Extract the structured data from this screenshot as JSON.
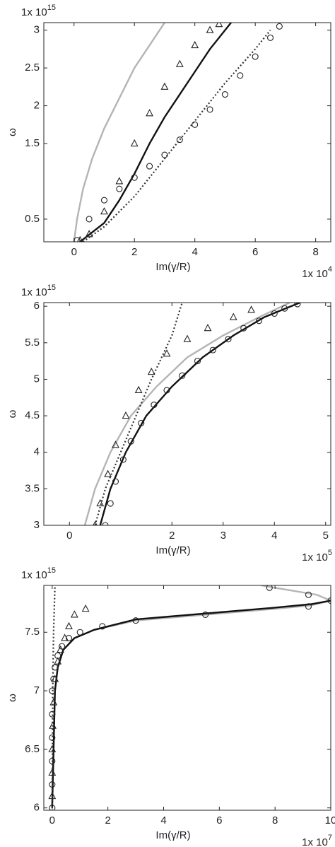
{
  "chart_data": [
    {
      "type": "line",
      "x_label": "Im(γ/R)",
      "y_label": "ω",
      "x_offset": {
        "base": "1x 10",
        "exponent": "4"
      },
      "y_offset": {
        "base": "1x 10",
        "exponent": "15"
      },
      "xlim": [
        -1,
        8.5
      ],
      "ylim": [
        0.2,
        3.1
      ],
      "xticks": [
        0,
        2,
        4,
        6,
        8
      ],
      "yticks": [
        0.5,
        1.5,
        2,
        2.5,
        3
      ],
      "series": [
        {
          "color": "#b4b4b4",
          "line": "solid",
          "marker": "none",
          "x": [
            0,
            0.1,
            0.3,
            0.6,
            1,
            1.5,
            2,
            2.5,
            3
          ],
          "values": [
            0.2,
            0.5,
            0.9,
            1.3,
            1.7,
            2.1,
            2.5,
            2.8,
            3.1
          ]
        },
        {
          "color": "#111111",
          "line": "solid",
          "marker": "none",
          "x": [
            0.2,
            1,
            1.5,
            2,
            2.5,
            3,
            3.5,
            4,
            4.5,
            5.2
          ],
          "values": [
            0.2,
            0.45,
            0.75,
            1.1,
            1.5,
            1.85,
            2.15,
            2.45,
            2.75,
            3.1
          ]
        },
        {
          "color": "#333333",
          "line": "dotted",
          "marker": "none",
          "x": [
            0.3,
            1,
            2,
            3,
            4,
            5,
            6,
            6.5
          ],
          "values": [
            0.2,
            0.4,
            0.8,
            1.3,
            1.8,
            2.3,
            2.75,
            3.0
          ]
        },
        {
          "color": "#222222",
          "line": "none",
          "marker": "triangle",
          "x": [
            0.2,
            0.5,
            1,
            1.5,
            2,
            2.5,
            3,
            3.5,
            4,
            4.5,
            4.8
          ],
          "values": [
            0.22,
            0.3,
            0.6,
            1.0,
            1.5,
            1.9,
            2.25,
            2.55,
            2.8,
            3.0,
            3.08
          ]
        },
        {
          "color": "#222222",
          "line": "none",
          "marker": "circle",
          "x": [
            0.1,
            0.5,
            1,
            1.5,
            2,
            2.5,
            3,
            3.5,
            4,
            4.5,
            5,
            5.5,
            6,
            6.5,
            6.8
          ],
          "values": [
            0.22,
            0.5,
            0.75,
            0.9,
            1.05,
            1.2,
            1.35,
            1.55,
            1.75,
            1.95,
            2.15,
            2.4,
            2.65,
            2.9,
            3.05
          ]
        }
      ]
    },
    {
      "type": "line",
      "x_label": "Im(γ/R)",
      "y_label": "ω",
      "x_offset": {
        "base": "1x 10",
        "exponent": "5"
      },
      "y_offset": {
        "base": "1x 10",
        "exponent": "15"
      },
      "xlim": [
        -0.5,
        5.1
      ],
      "ylim": [
        3,
        6.05
      ],
      "xticks": [
        0,
        2,
        3,
        4,
        5
      ],
      "yticks": [
        3,
        3.5,
        4,
        4.5,
        5,
        5.5,
        6
      ],
      "series": [
        {
          "color": "#b4b4b4",
          "line": "solid",
          "marker": "none",
          "x": [
            0.3,
            0.5,
            0.8,
            1.2,
            1.7,
            2.3,
            3,
            3.7,
            4.3
          ],
          "values": [
            3,
            3.5,
            4,
            4.5,
            4.9,
            5.3,
            5.6,
            5.85,
            6.05
          ]
        },
        {
          "color": "#111111",
          "line": "solid",
          "marker": "none",
          "x": [
            0.6,
            0.8,
            1.1,
            1.5,
            2,
            2.6,
            3.2,
            3.8,
            4.5
          ],
          "values": [
            3,
            3.5,
            4,
            4.5,
            4.9,
            5.3,
            5.6,
            5.85,
            6.05
          ]
        },
        {
          "color": "#333333",
          "line": "dotted",
          "marker": "none",
          "x": [
            0.5,
            0.7,
            1,
            1.3,
            1.6,
            2,
            2.2
          ],
          "values": [
            3,
            3.5,
            4,
            4.5,
            5,
            5.6,
            6.05
          ]
        },
        {
          "color": "#222222",
          "line": "none",
          "marker": "triangle",
          "x": [
            0.5,
            0.6,
            0.75,
            0.9,
            1.1,
            1.35,
            1.6,
            1.9,
            2.3,
            2.7,
            3.2,
            3.55
          ],
          "values": [
            3,
            3.3,
            3.7,
            4.1,
            4.5,
            4.85,
            5.1,
            5.35,
            5.55,
            5.7,
            5.85,
            5.95
          ]
        },
        {
          "color": "#222222",
          "line": "none",
          "marker": "circle",
          "x": [
            0.7,
            0.8,
            0.9,
            1.05,
            1.2,
            1.4,
            1.65,
            1.9,
            2.2,
            2.5,
            2.8,
            3.1,
            3.4,
            3.7,
            4.0,
            4.2,
            4.45
          ],
          "values": [
            3,
            3.3,
            3.6,
            3.9,
            4.15,
            4.4,
            4.65,
            4.85,
            5.05,
            5.25,
            5.4,
            5.55,
            5.7,
            5.8,
            5.9,
            5.97,
            6.03
          ]
        }
      ]
    },
    {
      "type": "line",
      "x_label": "Im(γ/R)",
      "y_label": "ω",
      "x_offset": {
        "base": "1x 10",
        "exponent": "7"
      },
      "y_offset": {
        "base": "1x 10",
        "exponent": "15"
      },
      "xlim": [
        -0.3,
        10
      ],
      "ylim": [
        5.98,
        7.9
      ],
      "xticks": [
        0,
        2,
        4,
        6,
        8,
        10
      ],
      "yticks": [
        6,
        6.5,
        7,
        7.5
      ],
      "series": [
        {
          "color": "#b4b4b4",
          "line": "solid",
          "marker": "none",
          "x": [
            0,
            0.05,
            0.1,
            0.2,
            0.4,
            0.8,
            1.5,
            3,
            5.5,
            8,
            9.3,
            10,
            9.5,
            8,
            7.5
          ],
          "values": [
            6,
            6.5,
            7,
            7.2,
            7.35,
            7.45,
            7.52,
            7.6,
            7.65,
            7.7,
            7.73,
            7.77,
            7.82,
            7.88,
            7.9
          ]
        },
        {
          "color": "#111111",
          "line": "solid",
          "marker": "none",
          "x": [
            0,
            0.05,
            0.1,
            0.2,
            0.4,
            0.8,
            1.5,
            3,
            5.5,
            8,
            9.3,
            10
          ],
          "values": [
            6,
            6.5,
            7,
            7.2,
            7.35,
            7.45,
            7.52,
            7.61,
            7.66,
            7.71,
            7.74,
            7.77
          ]
        },
        {
          "color": "#333333",
          "line": "dotted",
          "marker": "none",
          "x": [
            0,
            0.02,
            0.05,
            0.1
          ],
          "values": [
            6,
            7,
            7.5,
            7.9
          ]
        },
        {
          "color": "#222222",
          "line": "none",
          "marker": "triangle",
          "x": [
            0,
            0,
            0,
            0.02,
            0.05,
            0.1,
            0.2,
            0.3,
            0.45,
            0.6,
            0.8,
            1.2
          ],
          "values": [
            6.1,
            6.3,
            6.5,
            6.7,
            6.9,
            7.1,
            7.25,
            7.35,
            7.45,
            7.55,
            7.65,
            7.7
          ]
        },
        {
          "color": "#222222",
          "line": "none",
          "marker": "circle",
          "x": [
            0,
            0,
            0,
            0,
            0,
            0,
            0.05,
            0.1,
            0.2,
            0.35,
            0.6,
            1,
            1.8,
            3,
            5.5,
            9.2,
            10,
            9.2,
            7.8
          ],
          "values": [
            6,
            6.2,
            6.4,
            6.6,
            6.8,
            7,
            7.1,
            7.2,
            7.3,
            7.38,
            7.45,
            7.5,
            7.55,
            7.6,
            7.65,
            7.72,
            7.77,
            7.82,
            7.88
          ]
        }
      ]
    }
  ]
}
